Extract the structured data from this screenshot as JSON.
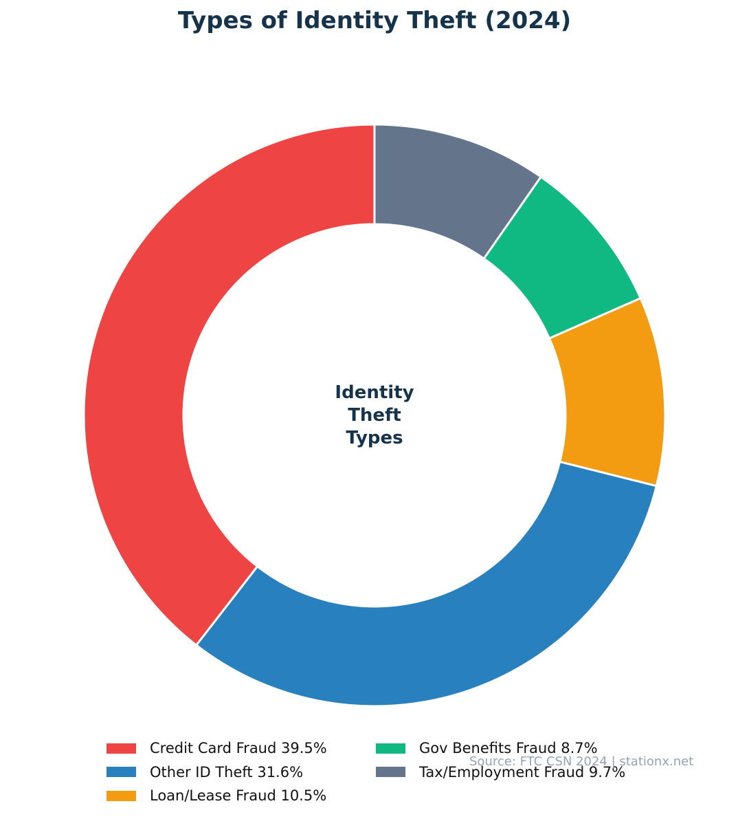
{
  "chart_data": {
    "type": "pie",
    "variant": "donut",
    "title": "Types of Identity Theft (2024)",
    "center_label": [
      "Identity",
      "Theft",
      "Types"
    ],
    "categories": [
      "Credit Card Fraud",
      "Other ID Theft",
      "Loan/Lease Fraud",
      "Gov Benefits Fraud",
      "Tax/Employment Fraud"
    ],
    "values": [
      39.5,
      31.6,
      10.5,
      8.7,
      9.7
    ],
    "colors": [
      "#ef4444",
      "#2980be",
      "#f39c12",
      "#10b981",
      "#64748b"
    ],
    "legend_labels": [
      "Credit Card Fraud 39.5%",
      "Other ID Theft 31.6%",
      "Loan/Lease Fraud 10.5%",
      "Gov Benefits Fraud 8.7%",
      "Tax/Employment Fraud 9.7%"
    ],
    "legend_placement": "bottom",
    "start_angle": "top",
    "direction": "counterclockwise",
    "source": "Source: FTC CSN 2024 | stationx.net"
  }
}
